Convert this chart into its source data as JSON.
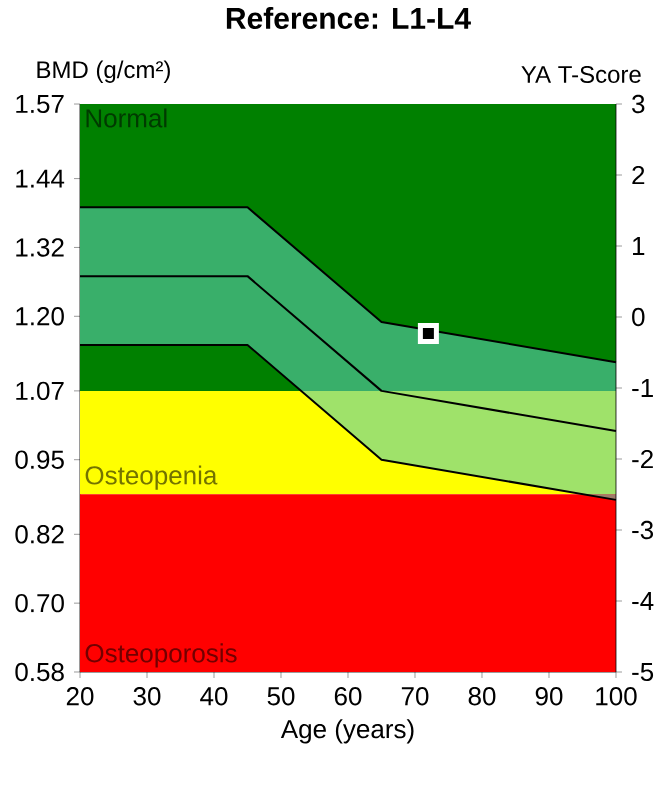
{
  "chart_data": {
    "type": "line",
    "title": "Reference: L1-L4",
    "xlabel": "Age (years)",
    "ylabel": "BMD (g/cm²)",
    "y2label": "YA T-Score",
    "xlim": [
      20,
      100
    ],
    "xticks": [
      20,
      30,
      40,
      50,
      60,
      70,
      80,
      90,
      100
    ],
    "ylim": [
      0.58,
      1.57
    ],
    "yticks": [
      0.58,
      {
        "value": 0.7,
        "label": "0.70"
      },
      0.82,
      0.95,
      1.07,
      {
        "value": 1.2,
        "label": "1.20"
      },
      1.32,
      1.44,
      1.57
    ],
    "y2lim": [
      -5,
      3
    ],
    "y2ticks": [
      -5,
      -4,
      -3,
      -2,
      -1,
      0,
      1,
      2,
      3
    ],
    "bands": [
      {
        "axis": "y",
        "from": 1.07,
        "to": 1.57,
        "label": "Normal",
        "color": "#008000"
      },
      {
        "axis": "y",
        "from": 0.89,
        "to": 1.07,
        "label": "Osteopenia",
        "color": "#ffff00"
      },
      {
        "axis": "y",
        "from": 0.58,
        "to": 0.89,
        "label": "Osteoporosis",
        "color": "#ff0000"
      }
    ],
    "series": [
      {
        "color": "#000000",
        "x": [
          20,
          45,
          65,
          100
        ],
        "values": [
          1.39,
          1.39,
          1.19,
          1.12
        ]
      },
      {
        "color": "#000000",
        "x": [
          20,
          45,
          65,
          100
        ],
        "values": [
          1.27,
          1.27,
          1.07,
          1.0
        ],
        "lower": [
          1.15,
          1.15,
          0.95,
          0.88
        ],
        "upper": [
          1.39,
          1.39,
          1.19,
          1.12
        ]
      },
      {
        "color": "#000000",
        "x": [
          20,
          45,
          65,
          100
        ],
        "values": [
          1.15,
          1.15,
          0.95,
          0.88
        ]
      },
      {
        "type": "scatter",
        "color": "#000000",
        "x": [
          72
        ],
        "values": [
          1.17
        ],
        "marker": "square"
      }
    ],
    "grid": false
  }
}
